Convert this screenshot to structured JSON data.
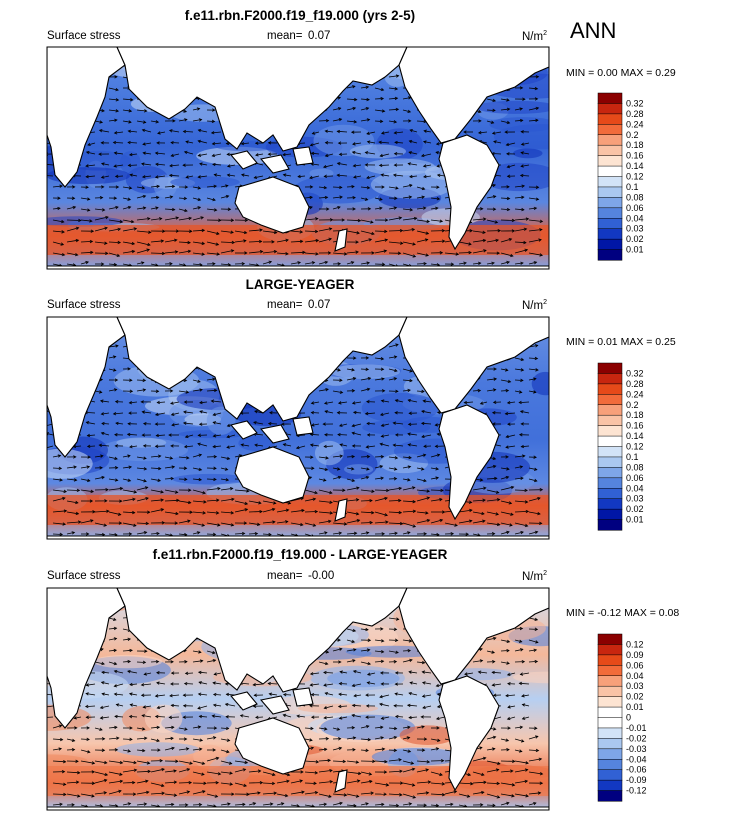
{
  "season": "ANN",
  "panels": [
    {
      "title": "f.e11.rbn.F2000.f19_f19.000 (yrs 2-5)",
      "field_label": "Surface stress",
      "mean_label": "mean=",
      "mean_value": "0.07",
      "units": "N/m",
      "units_sup": "2",
      "minmax": "MIN =  0.00 MAX =  0.29",
      "kind": "abs",
      "colorbar": {
        "labels": [
          "0.32",
          "0.28",
          "0.24",
          "0.2",
          "0.18",
          "0.16",
          "0.14",
          "0.12",
          "0.1",
          "0.08",
          "0.06",
          "0.04",
          "0.03",
          "0.02",
          "0.01"
        ],
        "colors": [
          "#8b0000",
          "#c8260f",
          "#e64a19",
          "#f26b3a",
          "#f7a07a",
          "#f9c3a6",
          "#fde4d2",
          "#ffffff",
          "#d2e3f7",
          "#aac8f0",
          "#7ea6e8",
          "#5584de",
          "#3161d4",
          "#1238c2",
          "#0016a6",
          "#000080"
        ]
      }
    },
    {
      "title": "LARGE-YEAGER",
      "field_label": "Surface stress",
      "mean_label": "mean=",
      "mean_value": "0.07",
      "units": "N/m",
      "units_sup": "2",
      "minmax": "MIN =  0.01 MAX =  0.25",
      "kind": "abs",
      "colorbar": {
        "labels": [
          "0.32",
          "0.28",
          "0.24",
          "0.2",
          "0.18",
          "0.16",
          "0.14",
          "0.12",
          "0.1",
          "0.08",
          "0.06",
          "0.04",
          "0.03",
          "0.02",
          "0.01"
        ],
        "colors": [
          "#8b0000",
          "#c8260f",
          "#e64a19",
          "#f26b3a",
          "#f7a07a",
          "#f9c3a6",
          "#fde4d2",
          "#ffffff",
          "#d2e3f7",
          "#aac8f0",
          "#7ea6e8",
          "#5584de",
          "#3161d4",
          "#1238c2",
          "#0016a6",
          "#000080"
        ]
      }
    },
    {
      "title": "f.e11.rbn.F2000.f19_f19.000 - LARGE-YEAGER",
      "field_label": "Surface stress",
      "mean_label": "mean=",
      "mean_value": "-0.00",
      "units": "N/m",
      "units_sup": "2",
      "minmax": "MIN = -0.12 MAX =  0.08",
      "kind": "diff",
      "colorbar": {
        "labels": [
          "0.12",
          "0.09",
          "0.06",
          "0.04",
          "0.03",
          "0.02",
          "0.01",
          "0",
          "-0.01",
          "-0.02",
          "-0.03",
          "-0.04",
          "-0.06",
          "-0.09",
          "-0.12"
        ],
        "colors": [
          "#8b0000",
          "#c8260f",
          "#e64a19",
          "#f26b3a",
          "#f7a07a",
          "#f9c3a6",
          "#fde4d2",
          "#ffffff",
          "#ffffff",
          "#d2e3f7",
          "#aac8f0",
          "#7ea6e8",
          "#5584de",
          "#3161d4",
          "#1238c2",
          "#000080"
        ]
      }
    }
  ]
}
